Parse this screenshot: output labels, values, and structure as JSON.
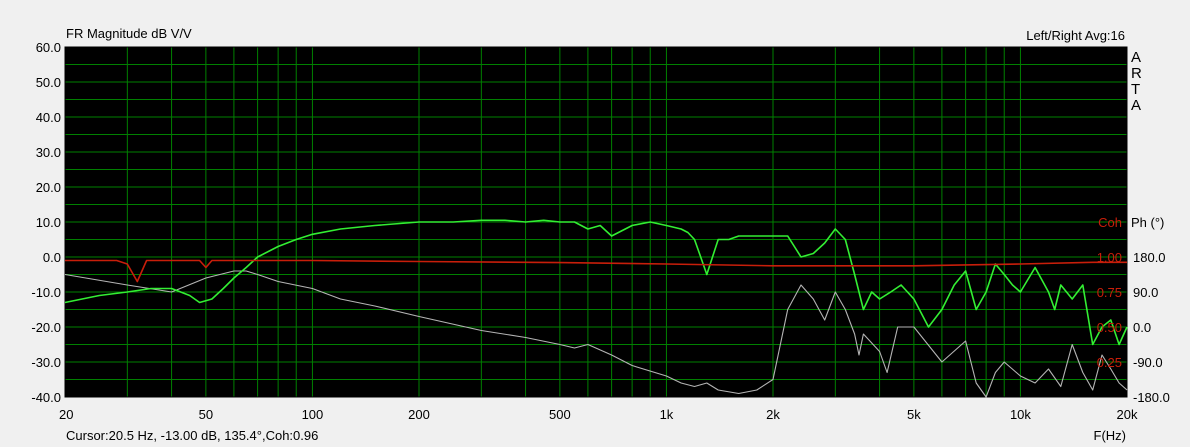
{
  "chart_data": {
    "type": "line",
    "title": "FR Magnitude dB V/V",
    "top_right_label": "Left/Right  Avg:16",
    "brand_letters": [
      "A",
      "R",
      "T",
      "A"
    ],
    "xlabel": "F(Hz)",
    "x_scale": "log",
    "xlim": [
      20,
      20000
    ],
    "x_ticks": [
      {
        "value": 20,
        "label": "20"
      },
      {
        "value": 50,
        "label": "50"
      },
      {
        "value": 100,
        "label": "100"
      },
      {
        "value": 200,
        "label": "200"
      },
      {
        "value": 500,
        "label": "500"
      },
      {
        "value": 1000,
        "label": "1k"
      },
      {
        "value": 2000,
        "label": "2k"
      },
      {
        "value": 5000,
        "label": "5k"
      },
      {
        "value": 10000,
        "label": "10k"
      },
      {
        "value": 20000,
        "label": "20k"
      }
    ],
    "ylim": [
      -40,
      60
    ],
    "y_ticks": [
      {
        "value": 60,
        "label": "60.0"
      },
      {
        "value": 50,
        "label": "50.0"
      },
      {
        "value": 40,
        "label": "40.0"
      },
      {
        "value": 30,
        "label": "30.0"
      },
      {
        "value": 20,
        "label": "20.0"
      },
      {
        "value": 10,
        "label": "10.0"
      },
      {
        "value": 0,
        "label": "0.0"
      },
      {
        "value": -10,
        "label": "-10.0"
      },
      {
        "value": -20,
        "label": "-20.0"
      },
      {
        "value": -30,
        "label": "-30.0"
      },
      {
        "value": -40,
        "label": "-40.0"
      }
    ],
    "right_axis_headers": {
      "coh": "Coh",
      "phase": "Ph (°)"
    },
    "right_axis_ticks": [
      {
        "y": 0,
        "coh": "1.00",
        "phase": "180.0"
      },
      {
        "y": -10,
        "coh": "0.75",
        "phase": "90.0"
      },
      {
        "y": -20,
        "coh": "0.50",
        "phase": "0.0"
      },
      {
        "y": -30,
        "coh": "0.25",
        "phase": "-90.0"
      },
      {
        "y": -40,
        "coh": "",
        "phase": "-180.0"
      }
    ],
    "grid": true,
    "colors": {
      "plot_background": "#000000",
      "grid": "#008000",
      "magnitude": "#33ee33",
      "phase": "#b4b4b4",
      "coherence": "#c81e0a",
      "outer_background": "#f0f0f0"
    },
    "series": [
      {
        "key": "magnitude",
        "x": [
          20,
          25,
          30,
          35,
          40,
          45,
          48,
          52,
          56,
          60,
          65,
          70,
          80,
          90,
          100,
          120,
          150,
          200,
          250,
          300,
          350,
          400,
          450,
          500,
          550,
          600,
          650,
          700,
          800,
          900,
          1000,
          1100,
          1150,
          1200,
          1250,
          1300,
          1400,
          1500,
          1600,
          1800,
          2000,
          2200,
          2400,
          2600,
          2800,
          3000,
          3200,
          3400,
          3600,
          3800,
          4000,
          4300,
          4600,
          5000,
          5500,
          6000,
          6500,
          7000,
          7500,
          8000,
          8500,
          9000,
          9500,
          10000,
          11000,
          12000,
          12500,
          13000,
          14000,
          15000,
          16000,
          17000,
          18000,
          19000,
          20000
        ],
        "y": [
          -13,
          -11,
          -10,
          -9,
          -9,
          -11,
          -13,
          -12,
          -9,
          -6,
          -3,
          0,
          3,
          5,
          6.5,
          8,
          9,
          10,
          10,
          10.5,
          10.5,
          10,
          10.5,
          10,
          10,
          8,
          9,
          6,
          9,
          10,
          9,
          8,
          7,
          5,
          0,
          -5,
          5,
          5,
          6,
          6,
          6,
          6,
          0,
          1,
          4,
          8,
          5,
          -5,
          -15,
          -10,
          -12,
          -10,
          -8,
          -12,
          -20,
          -15,
          -8,
          -4,
          -15,
          -10,
          -2,
          -5,
          -8,
          -10,
          -3,
          -10,
          -15,
          -8,
          -12,
          -8,
          -25,
          -20,
          -18,
          -25,
          -20
        ]
      },
      {
        "key": "phase",
        "x": [
          20,
          30,
          40,
          50,
          60,
          65,
          70,
          80,
          100,
          120,
          150,
          200,
          300,
          400,
          500,
          550,
          600,
          700,
          800,
          1000,
          1100,
          1200,
          1300,
          1400,
          1600,
          1800,
          2000,
          2200,
          2400,
          2600,
          2800,
          3000,
          3200,
          3400,
          3500,
          3600,
          4000,
          4200,
          4500,
          5000,
          6000,
          7000,
          7500,
          8000,
          8500,
          9000,
          10000,
          11000,
          12000,
          13000,
          14000,
          15000,
          16000,
          17000,
          18000,
          19000,
          20000
        ],
        "y": [
          -5,
          -8,
          -10,
          -6,
          -4,
          -4,
          -5,
          -7,
          -9,
          -12,
          -14,
          -17,
          -21,
          -23,
          -25,
          -26,
          -25,
          -28,
          -31,
          -34,
          -36,
          -37,
          -36,
          -38,
          -39,
          -38,
          -35,
          -15,
          -8,
          -12,
          -18,
          -10,
          -15,
          -22,
          -28,
          -22,
          -27,
          -33,
          -20,
          -20,
          -30,
          -24,
          -36,
          -40,
          -33,
          -30,
          -34,
          -36,
          -32,
          -37,
          -25,
          -33,
          -38,
          -28,
          -32,
          -36,
          -38
        ]
      },
      {
        "key": "coherence",
        "x": [
          20,
          25,
          28,
          30,
          32,
          34,
          36,
          40,
          45,
          48,
          50,
          52,
          56,
          60,
          70,
          100,
          200,
          500,
          1000,
          2000,
          5000,
          10000,
          16000,
          20000
        ],
        "y": [
          -1,
          -1,
          -1,
          -2,
          -7,
          -1,
          -1,
          -1,
          -1,
          -1,
          -3,
          -1,
          -1,
          -1,
          -1,
          -1,
          -1.3,
          -1.6,
          -2,
          -2.5,
          -2.5,
          -2,
          -1.5,
          -1.5
        ]
      }
    ]
  }
}
